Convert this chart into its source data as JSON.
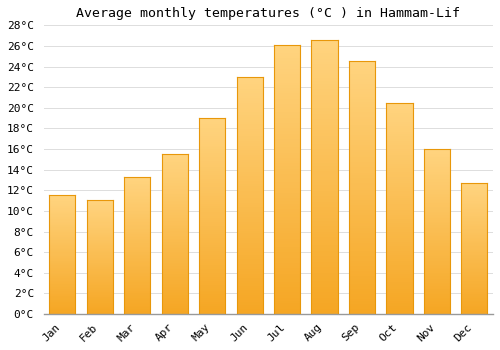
{
  "title": "Average monthly temperatures (°C ) in Hammam-Lif",
  "months": [
    "Jan",
    "Feb",
    "Mar",
    "Apr",
    "May",
    "Jun",
    "Jul",
    "Aug",
    "Sep",
    "Oct",
    "Nov",
    "Dec"
  ],
  "temperatures": [
    11.5,
    11.1,
    13.3,
    15.5,
    19.0,
    23.0,
    26.1,
    26.6,
    24.5,
    20.5,
    16.0,
    12.7
  ],
  "bar_color_bottom": "#F5A623",
  "bar_color_top": "#FFD480",
  "bar_edge_color": "#E8970A",
  "ylim": [
    0,
    28
  ],
  "ytick_step": 2,
  "background_color": "#FFFFFF",
  "plot_bg_color": "#FFFFFF",
  "grid_color": "#DDDDDD",
  "title_fontsize": 9.5,
  "tick_fontsize": 8,
  "font_family": "monospace"
}
